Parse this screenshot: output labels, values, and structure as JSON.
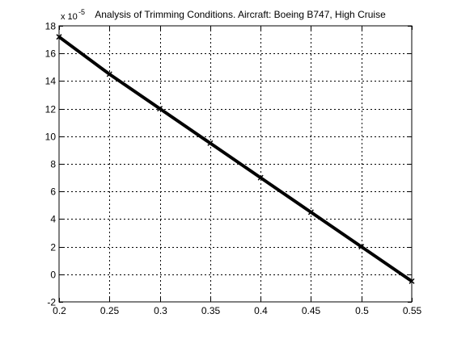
{
  "chart_data": {
    "type": "line",
    "title": "Analysis of Trimming Conditions. Aircraft: Boeing B747, High Cruise",
    "xlabel": "",
    "ylabel": "",
    "y_multiplier_label": "x 10",
    "y_multiplier_exponent": "-5",
    "xlim": [
      0.2,
      0.55
    ],
    "ylim": [
      -2,
      18
    ],
    "xticks": [
      "0.2",
      "0.25",
      "0.3",
      "0.35",
      "0.4",
      "0.45",
      "0.5",
      "0.55"
    ],
    "yticks": [
      "-2",
      "0",
      "2",
      "4",
      "6",
      "8",
      "10",
      "12",
      "14",
      "16",
      "18"
    ],
    "grid": true,
    "grid_style": "dotted",
    "series": [
      {
        "color": "#000000",
        "x": [
          0.2,
          0.25,
          0.3,
          0.35,
          0.4,
          0.45,
          0.5,
          0.55
        ],
        "values": [
          17.2,
          14.5,
          12.0,
          9.5,
          7.0,
          4.5,
          2.0,
          -0.5
        ]
      }
    ]
  }
}
